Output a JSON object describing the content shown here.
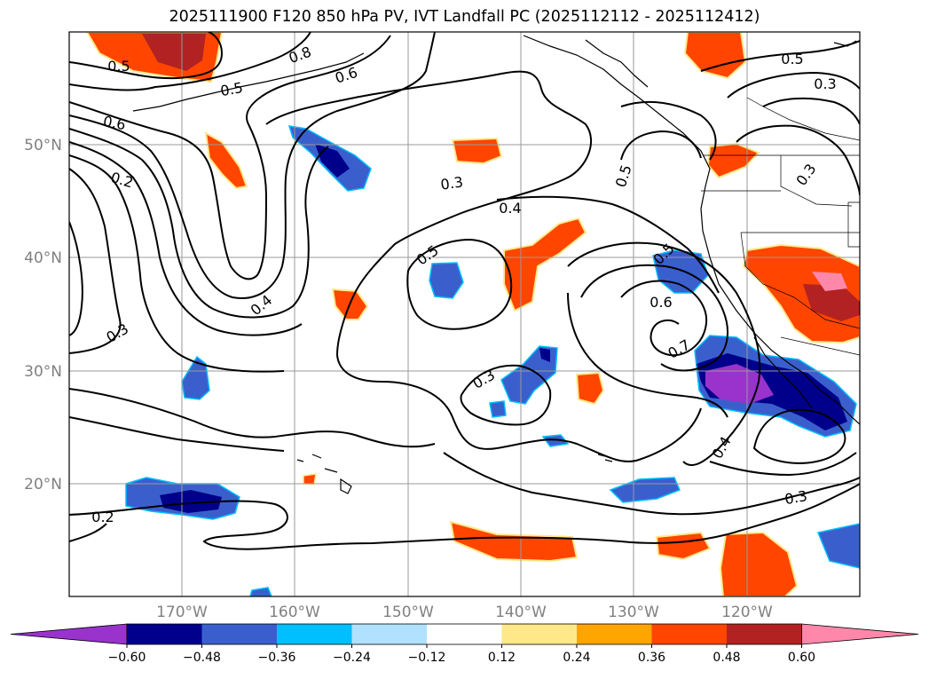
{
  "title": "2025111900 F120 850 hPa PV, IVT Landfall PC (2025112112 - 2025112412)",
  "lat_labels": [
    "50°N",
    "40°N",
    "30°N",
    "20°N"
  ],
  "lon_labels": [
    "170°W",
    "160°W",
    "150°W",
    "140°W",
    "130°W",
    "120°W"
  ],
  "contour_labels": [
    {
      "text": "0.5",
      "id": "a"
    },
    {
      "text": "0.8",
      "id": "b"
    },
    {
      "text": "0.6",
      "id": "c"
    },
    {
      "text": "0.5",
      "id": "d"
    },
    {
      "text": "0.6",
      "id": "e"
    },
    {
      "text": "0.2",
      "id": "f"
    },
    {
      "text": "0.4",
      "id": "g"
    },
    {
      "text": "0.3",
      "id": "h"
    },
    {
      "text": "0.3",
      "id": "i"
    },
    {
      "text": "0.4",
      "id": "j"
    },
    {
      "text": "0.5",
      "id": "k"
    },
    {
      "text": "0.3",
      "id": "l"
    },
    {
      "text": "0.5",
      "id": "m"
    },
    {
      "text": "0.5",
      "id": "n"
    },
    {
      "text": "0.6",
      "id": "o"
    },
    {
      "text": "0.7",
      "id": "p"
    },
    {
      "text": "0.4",
      "id": "q"
    },
    {
      "text": "0.3",
      "id": "r"
    },
    {
      "text": "0.5",
      "id": "s"
    },
    {
      "text": "0.3",
      "id": "t"
    },
    {
      "text": "0.3",
      "id": "u"
    },
    {
      "text": "0.2",
      "id": "v"
    }
  ],
  "colorbar": {
    "ticks": [
      "−0.60",
      "−0.48",
      "−0.36",
      "−0.24",
      "−0.12",
      "0.12",
      "0.24",
      "0.36",
      "0.48",
      "0.60"
    ],
    "colors": [
      "#9933cc",
      "#00008b",
      "#3a5fcd",
      "#00bfff",
      "#b0e2ff",
      "#ffffff",
      "#ffe88a",
      "#ffa500",
      "#ff4500",
      "#b22222",
      "#ff88aa"
    ]
  }
}
